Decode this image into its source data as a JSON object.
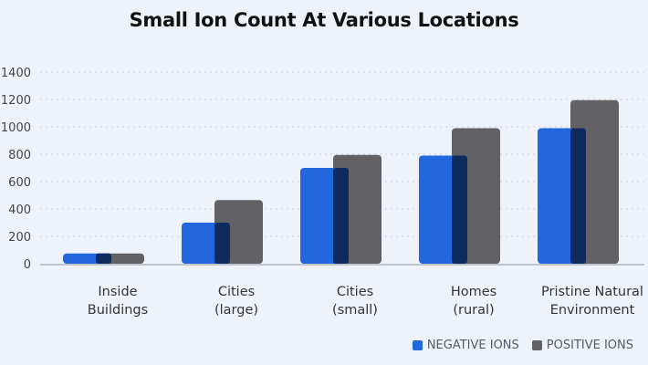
{
  "chart_data": {
    "type": "bar",
    "title": "Small Ion Count At Various Locations",
    "xlabel": "",
    "ylabel": "",
    "ylim": [
      0,
      1400
    ],
    "yticks": [
      "0",
      "200",
      "400",
      "600",
      "800",
      "1000",
      "1200",
      "1400"
    ],
    "categories": [
      [
        "Inside",
        "Buildings"
      ],
      [
        "Cities",
        "(large)"
      ],
      [
        "Cities",
        "(small)"
      ],
      [
        "Homes",
        "(rural)"
      ],
      [
        "Pristine Natural",
        "Environment"
      ]
    ],
    "series": [
      {
        "name": "NEGATIVE IONS",
        "color": "#2367de",
        "values": [
          75,
          300,
          700,
          790,
          990
        ]
      },
      {
        "name": "POSITIVE IONS",
        "color": "#616166",
        "values": [
          75,
          465,
          795,
          990,
          1195
        ]
      }
    ],
    "overlap_color": "#0f2a5c",
    "grid": true,
    "legend_position": "bottom-right"
  }
}
